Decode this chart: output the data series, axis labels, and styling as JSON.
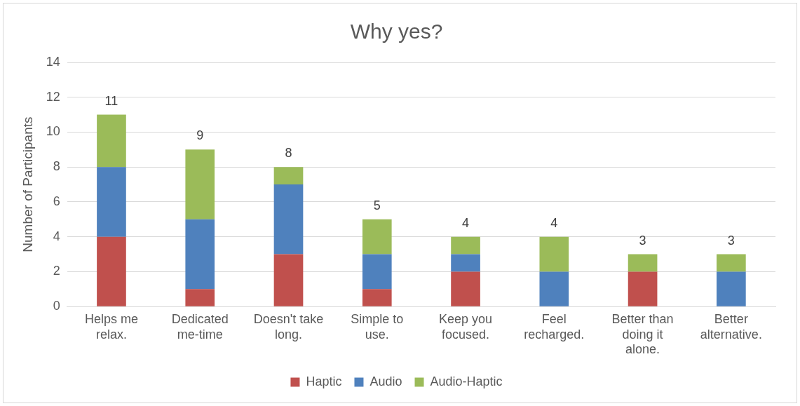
{
  "chart_data": {
    "type": "bar",
    "title": "Why yes?",
    "ylabel": "Number of Participants",
    "categories": [
      "Helps me relax.",
      "Dedicated me-time",
      "Doesn't take long.",
      "Simple to use.",
      "Keep you focused.",
      "Feel recharged.",
      "Better than doing it alone.",
      "Better alternative."
    ],
    "series": [
      {
        "name": "Haptic",
        "color": "#c0504d",
        "values": [
          4,
          1,
          3,
          1,
          2,
          0,
          2,
          0
        ]
      },
      {
        "name": "Audio",
        "color": "#4f81bd",
        "values": [
          4,
          4,
          4,
          2,
          1,
          2,
          0,
          2
        ]
      },
      {
        "name": "Audio-Haptic",
        "color": "#9bbb59",
        "values": [
          3,
          4,
          1,
          2,
          1,
          2,
          1,
          1
        ]
      }
    ],
    "stacked": true,
    "totals": [
      "11",
      "9",
      "8",
      "5",
      "4",
      "4",
      "3",
      "3"
    ],
    "ylim": [
      0,
      14
    ],
    "yticks": [
      0,
      2,
      4,
      6,
      8,
      10,
      12,
      14
    ],
    "grid": "y",
    "legend": "bottom"
  }
}
